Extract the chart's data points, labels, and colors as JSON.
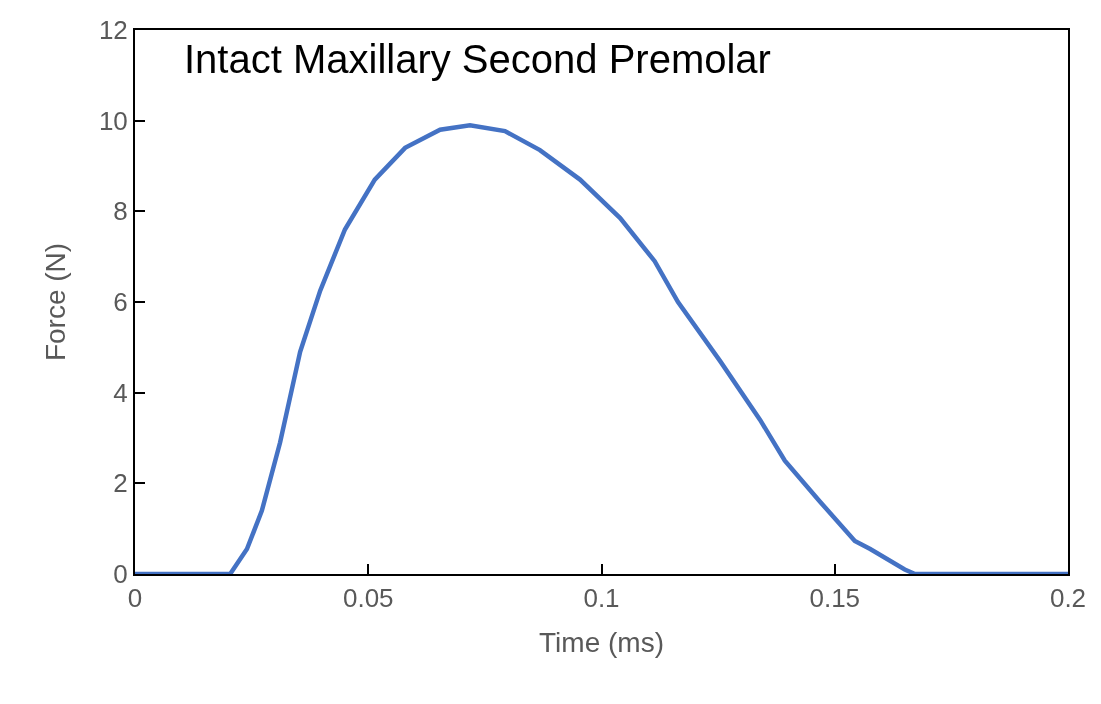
{
  "chart_data": {
    "type": "line",
    "xlabel": "Time (ms)",
    "ylabel": "Force (N)",
    "annotations": [
      "Intact Maxillary Second Premolar"
    ],
    "series": [
      {
        "color": "#4472c4",
        "x": [
          0,
          0.0204,
          0.024,
          0.0272,
          0.0311,
          0.0354,
          0.0397,
          0.045,
          0.0514,
          0.0579,
          0.0654,
          0.0718,
          0.0793,
          0.0868,
          0.0954,
          0.104,
          0.1114,
          0.1164,
          0.1254,
          0.134,
          0.1393,
          0.1468,
          0.1543,
          0.1576,
          0.165,
          0.1672,
          0.2
        ],
        "values": [
          0,
          0,
          0.55,
          1.4,
          2.9,
          4.9,
          6.25,
          7.6,
          8.7,
          9.4,
          9.8,
          9.9,
          9.77,
          9.35,
          8.7,
          7.85,
          6.9,
          6.0,
          4.7,
          3.4,
          2.5,
          1.6,
          0.73,
          0.55,
          0.1,
          0,
          0
        ]
      }
    ],
    "xlim": [
      0,
      0.2
    ],
    "xticks": [
      0,
      0.05,
      0.1,
      0.15,
      0.2
    ],
    "ylim": [
      0,
      12
    ],
    "yticks": [
      0,
      2,
      4,
      6,
      8,
      10,
      12
    ],
    "grid": false,
    "marker": "none",
    "line_style": "solid"
  }
}
